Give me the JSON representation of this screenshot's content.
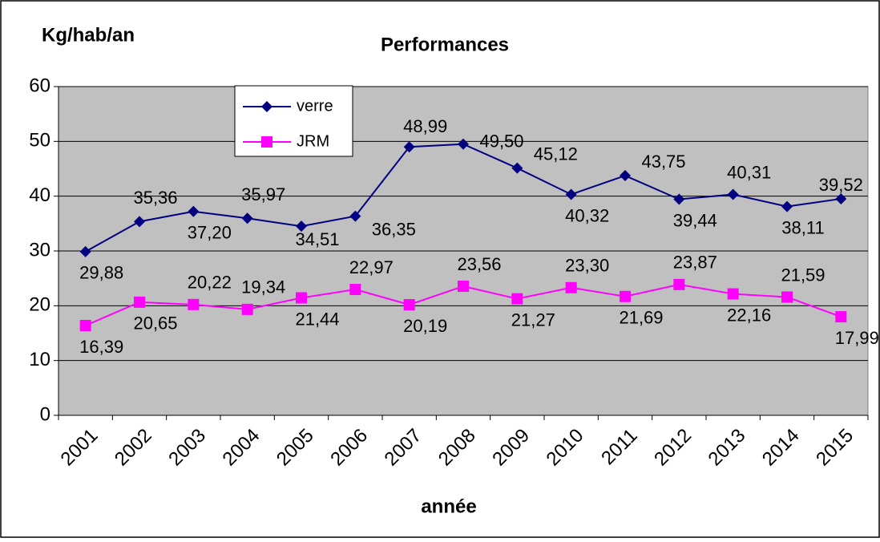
{
  "chart_data": {
    "type": "line",
    "title": "Performances",
    "y_label": "Kg/hab/an",
    "x_label": "année",
    "categories": [
      "2001",
      "2002",
      "2003",
      "2004",
      "2005",
      "2006",
      "2007",
      "2008",
      "2009",
      "2010",
      "2011",
      "2012",
      "2013",
      "2014",
      "2015"
    ],
    "series": [
      {
        "name": "verre",
        "color": "#000080",
        "marker": "diamond",
        "values": [
          29.88,
          35.36,
          37.2,
          35.97,
          34.51,
          36.35,
          48.99,
          49.5,
          45.12,
          40.32,
          43.75,
          39.44,
          40.31,
          38.11,
          39.52
        ],
        "value_labels": [
          "29,88",
          "35,36",
          "37,20",
          "35,97",
          "34,51",
          "36,35",
          "48,99",
          "49,50",
          "45,12",
          "40,32",
          "43,75",
          "39,44",
          "40,31",
          "38,11",
          "39,52"
        ]
      },
      {
        "name": "JRM",
        "color": "#ff00ff",
        "marker": "square",
        "values": [
          16.39,
          20.65,
          20.22,
          19.34,
          21.44,
          22.97,
          20.19,
          23.56,
          21.27,
          23.3,
          21.69,
          23.87,
          22.16,
          21.59,
          17.99
        ],
        "value_labels": [
          "16,39",
          "20,65",
          "20,22",
          "19,34",
          "21,44",
          "22,97",
          "20,19",
          "23,56",
          "21,27",
          "23,30",
          "21,69",
          "23,87",
          "22,16",
          "21,59",
          "17,99"
        ]
      }
    ],
    "ylim": [
      0,
      60
    ],
    "yticks": [
      0,
      10,
      20,
      30,
      40,
      50,
      60
    ],
    "grid": true,
    "plot_background": "#c0c0c0"
  }
}
